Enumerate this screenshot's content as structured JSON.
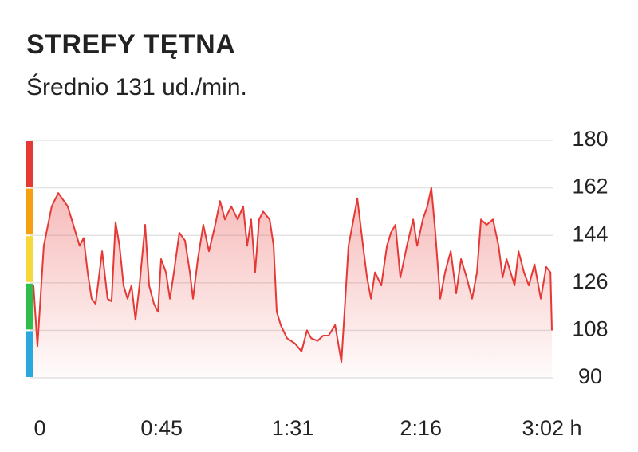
{
  "chart_data": {
    "type": "area-line",
    "title": "STREFY TĘTNA",
    "subtitle": "Średnio 131 ud./min.",
    "color": "#e53935",
    "zone_colors": [
      "#29a8e0",
      "#2dbe4e",
      "#f6d83a",
      "#f5a00f",
      "#e53935"
    ],
    "grid": true,
    "x": [
      0,
      1.4,
      3.6,
      6.4,
      8.7,
      12.0,
      14.8,
      16.2,
      17.6,
      19.0,
      20.4,
      21.8,
      24.1,
      26.0,
      27.4,
      28.8,
      30.2,
      31.6,
      33.0,
      34.4,
      35.8,
      37.2,
      39.2,
      40.6,
      42.3,
      43.7,
      44.8,
      46.5,
      47.9,
      49.3,
      51.2,
      53.2,
      54.9,
      56.0,
      57.7,
      59.6,
      61.6,
      63.8,
      65.5,
      67.2,
      69.4,
      71.7,
      73.6,
      75.0,
      76.4,
      77.8,
      79.2,
      80.6,
      82.9,
      84.3,
      85.4,
      86.8,
      89.0,
      91.8,
      94.1,
      96.0,
      97.5,
      99.7,
      101.7,
      103.6,
      105.9,
      108.1,
      109.2,
      110.6,
      112.0,
      113.7,
      115.7,
      117.1,
      118.5,
      119.9,
      122.1,
      124.1,
      125.5,
      127.1,
      128.8,
      131.1,
      133.3,
      134.7,
      136.7,
      138.3,
      139.7,
      141.1,
      142.8,
      144.5,
      146.5,
      148.4,
      150.1,
      152.1,
      154.0,
      155.7,
      157.1,
      159.1,
      161.3,
      163.3,
      164.7,
      166.1,
      167.5,
      168.9,
      170.3,
      172.2,
      173.9,
      175.9,
      178.1,
      180.0,
      181.5,
      182
    ],
    "values": [
      125,
      102,
      140,
      155,
      160,
      155,
      145,
      140,
      143,
      130,
      120,
      118,
      138,
      120,
      119,
      149,
      140,
      125,
      120,
      125,
      112,
      125,
      148,
      125,
      118,
      115,
      135,
      130,
      120,
      130,
      145,
      142,
      130,
      120,
      135,
      148,
      138,
      148,
      157,
      150,
      155,
      150,
      155,
      140,
      150,
      130,
      150,
      153,
      150,
      140,
      115,
      110,
      105,
      103,
      100,
      108,
      105,
      104,
      106,
      106,
      110,
      96,
      115,
      140,
      148,
      158,
      140,
      128,
      120,
      130,
      125,
      140,
      145,
      148,
      128,
      140,
      150,
      140,
      150,
      155,
      162,
      145,
      120,
      130,
      138,
      122,
      135,
      128,
      120,
      130,
      150,
      148,
      150,
      140,
      128,
      135,
      130,
      125,
      138,
      130,
      125,
      133,
      120,
      132,
      130,
      108
    ],
    "xlim": [
      0,
      182
    ],
    "xticks": [
      0,
      {
        "value": 45,
        "label": "0:45"
      },
      {
        "value": 91,
        "label": "1:31"
      },
      {
        "value": 136,
        "label": "2:16"
      },
      {
        "value": 182,
        "label": "3:02 h"
      }
    ],
    "ylim": [
      90,
      180
    ],
    "yticks": [
      90,
      108,
      126,
      144,
      162,
      180
    ]
  }
}
